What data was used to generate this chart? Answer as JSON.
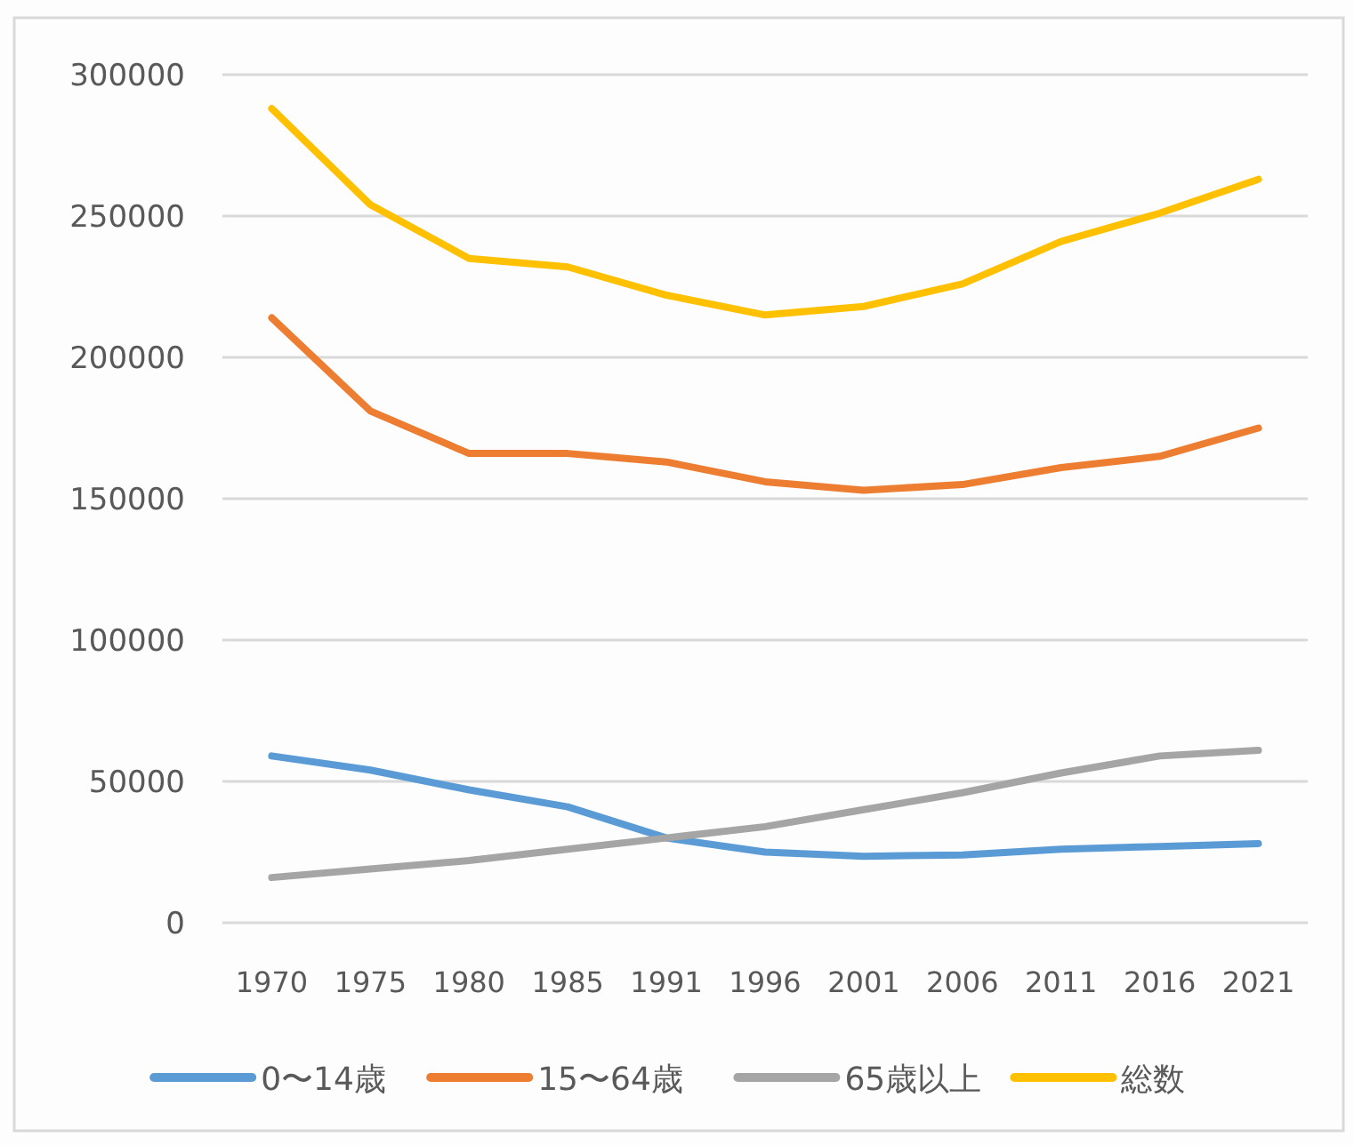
{
  "chart_data": {
    "type": "line",
    "categories": [
      "1970",
      "1975",
      "1980",
      "1985",
      "1991",
      "1996",
      "2001",
      "2006",
      "2011",
      "2016",
      "2021"
    ],
    "series": [
      {
        "name": "0〜14歳",
        "color": "#5b9bd5",
        "values": [
          59000,
          54000,
          47000,
          41000,
          30000,
          25000,
          23500,
          24000,
          26000,
          27000,
          28000
        ]
      },
      {
        "name": "15〜64歳",
        "color": "#ed7d31",
        "values": [
          214000,
          181000,
          166000,
          166000,
          163000,
          156000,
          153000,
          155000,
          161000,
          165000,
          175000
        ]
      },
      {
        "name": "65歳以上",
        "color": "#a5a5a5",
        "values": [
          16000,
          19000,
          22000,
          26000,
          30000,
          34000,
          40000,
          46000,
          53000,
          59000,
          61000
        ]
      },
      {
        "name": "総数",
        "color": "#ffc000",
        "values": [
          288000,
          254000,
          235000,
          232000,
          222000,
          215000,
          218000,
          226000,
          241000,
          251000,
          263000
        ]
      }
    ],
    "ylim": [
      0,
      300000
    ],
    "yticks": [
      0,
      50000,
      100000,
      150000,
      200000,
      250000,
      300000
    ],
    "grid": "y",
    "legend": "bottom",
    "marker": "none",
    "line_style": "solid"
  }
}
